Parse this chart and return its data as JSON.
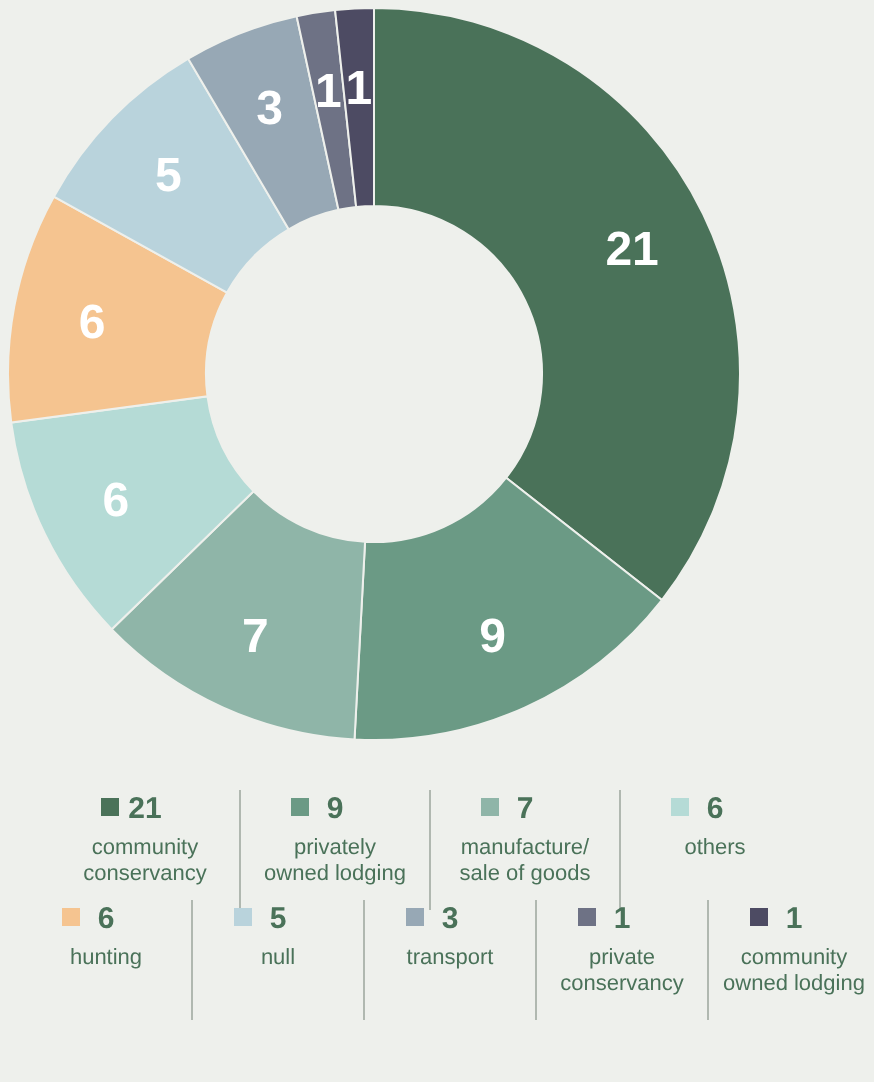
{
  "chart_data": {
    "type": "donut",
    "categories": [
      "community conservancy",
      "privately owned lodging",
      "manufacture/sale of goods",
      "others",
      "hunting",
      "null",
      "transport",
      "private conservancy",
      "community owned lodging"
    ],
    "values": [
      21,
      9,
      7,
      6,
      6,
      5,
      3,
      1,
      1
    ],
    "colors": [
      "#4a7259",
      "#6b9a85",
      "#8fb5a8",
      "#b5dbd6",
      "#f5c490",
      "#b9d3dc",
      "#97a8b5",
      "#6e7285",
      "#4d4b63"
    ],
    "value_labels": [
      "21",
      "9",
      "7",
      "6",
      "6",
      "5",
      "3",
      "1",
      "1"
    ],
    "legend": "bottom"
  }
}
